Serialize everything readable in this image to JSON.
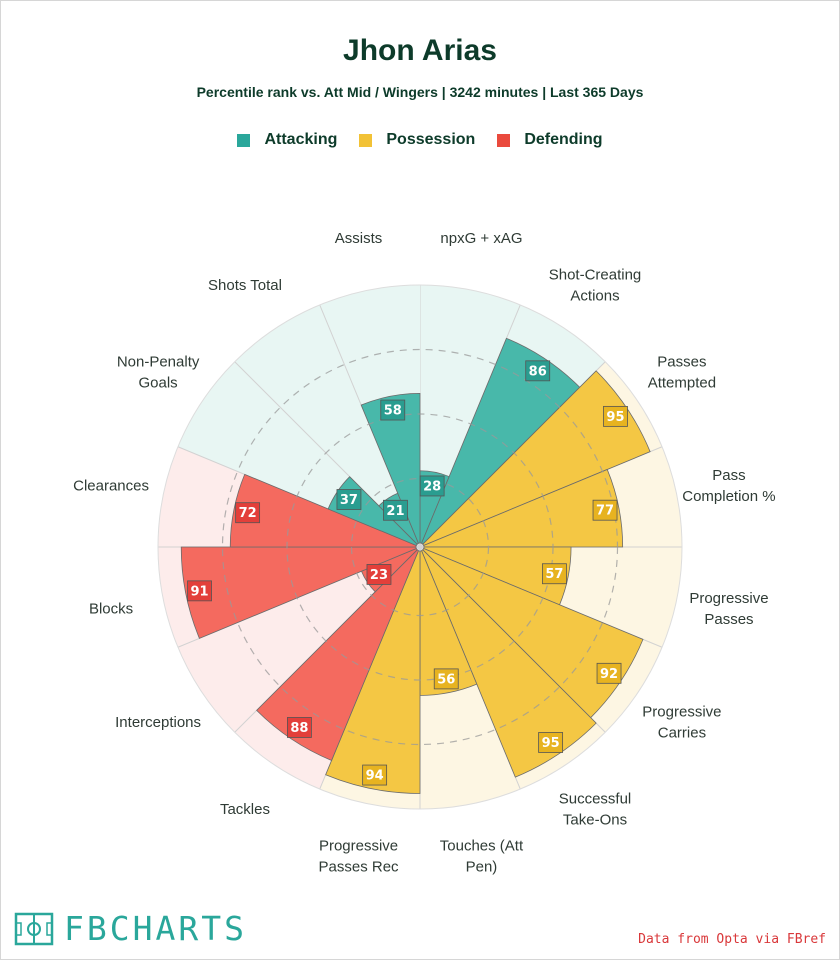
{
  "header": {
    "title": "Jhon Arias",
    "subtitle": "Percentile rank vs. Att Mid / Wingers | 3242 minutes | Last 365 Days"
  },
  "legend": [
    {
      "label": "Attacking",
      "color": "#2aa79b"
    },
    {
      "label": "Possession",
      "color": "#f2c236"
    },
    {
      "label": "Defending",
      "color": "#ea4a3d"
    }
  ],
  "footer": {
    "brand": "FBCHARTS",
    "credit": "Data from Opta via FBref"
  },
  "chart_data": {
    "type": "polar-bar",
    "rlim": [
      0,
      100
    ],
    "gridlines": [
      25,
      50,
      75
    ],
    "groups": {
      "Attacking": {
        "fill": "#48b8aa",
        "bg": "#e8f6f3",
        "label_bg": "#2a9d90"
      },
      "Possession": {
        "fill": "#f4c744",
        "bg": "#fdf6e3",
        "label_bg": "#e7b320"
      },
      "Defending": {
        "fill": "#f46a5f",
        "bg": "#fdeceb",
        "label_bg": "#e33f3a"
      }
    },
    "metrics": [
      {
        "label": "npxG + xAG",
        "lines": [
          "npxG + xAG"
        ],
        "value": 28,
        "group": "Attacking"
      },
      {
        "label": "Shot-Creating Actions",
        "lines": [
          "Shot-Creating",
          "Actions"
        ],
        "value": 86,
        "group": "Attacking"
      },
      {
        "label": "Passes Attempted",
        "lines": [
          "Passes",
          "Attempted"
        ],
        "value": 95,
        "group": "Possession"
      },
      {
        "label": "Pass Completion %",
        "lines": [
          "Pass",
          "Completion %"
        ],
        "value": 77,
        "group": "Possession"
      },
      {
        "label": "Progressive Passes",
        "lines": [
          "Progressive",
          "Passes"
        ],
        "value": 57,
        "group": "Possession"
      },
      {
        "label": "Progressive Carries",
        "lines": [
          "Progressive",
          "Carries"
        ],
        "value": 92,
        "group": "Possession"
      },
      {
        "label": "Successful Take-Ons",
        "lines": [
          "Successful",
          "Take-Ons"
        ],
        "value": 95,
        "group": "Possession"
      },
      {
        "label": "Touches (Att Pen)",
        "lines": [
          "Touches (Att",
          "Pen)"
        ],
        "value": 56,
        "group": "Possession"
      },
      {
        "label": "Progressive Passes Rec",
        "lines": [
          "Progressive",
          "Passes Rec"
        ],
        "value": 94,
        "group": "Possession"
      },
      {
        "label": "Tackles",
        "lines": [
          "Tackles"
        ],
        "value": 88,
        "group": "Defending"
      },
      {
        "label": "Interceptions",
        "lines": [
          "Interceptions"
        ],
        "value": 23,
        "group": "Defending"
      },
      {
        "label": "Blocks",
        "lines": [
          "Blocks"
        ],
        "value": 91,
        "group": "Defending"
      },
      {
        "label": "Clearances",
        "lines": [
          "Clearances"
        ],
        "value": 72,
        "group": "Defending"
      },
      {
        "label": "Non-Penalty Goals",
        "lines": [
          "Non-Penalty",
          "Goals"
        ],
        "value": 37,
        "group": "Attacking"
      },
      {
        "label": "Shots Total",
        "lines": [
          "Shots Total"
        ],
        "value": 21,
        "group": "Attacking"
      },
      {
        "label": "Assists",
        "lines": [
          "Assists"
        ],
        "value": 58,
        "group": "Attacking"
      }
    ]
  }
}
